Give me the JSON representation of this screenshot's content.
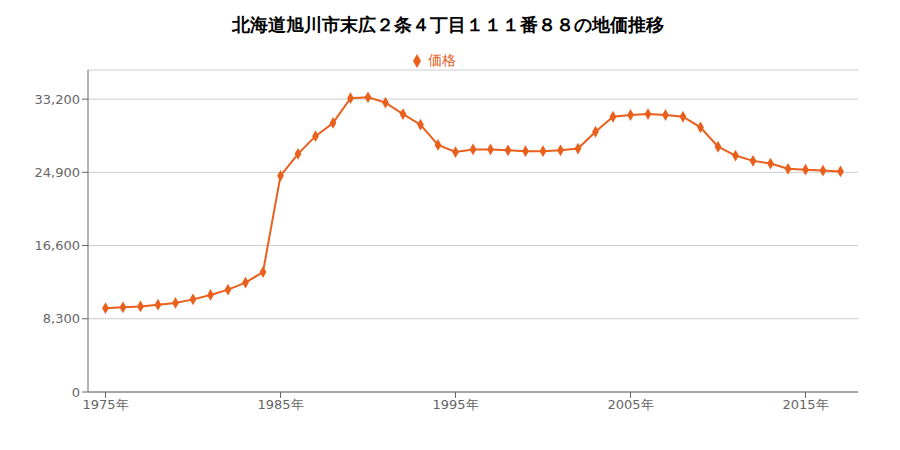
{
  "chart_data": {
    "type": "line",
    "title": "北海道旭川市末広２条４丁目１１１番８８の地価推移",
    "x": [
      1975,
      1976,
      1977,
      1978,
      1979,
      1980,
      1981,
      1982,
      1983,
      1984,
      1985,
      1986,
      1987,
      1988,
      1989,
      1990,
      1991,
      1992,
      1993,
      1994,
      1995,
      1996,
      1997,
      1998,
      1999,
      2000,
      2001,
      2002,
      2003,
      2004,
      2005,
      2006,
      2007,
      2008,
      2009,
      2010,
      2011,
      2012,
      2013,
      2014,
      2015,
      2016,
      2017
    ],
    "series": [
      {
        "name": "価格",
        "color": "#e8601c",
        "marker": "diamond",
        "values": [
          9500,
          9600,
          9700,
          9900,
          10100,
          10500,
          11000,
          11600,
          12400,
          13600,
          24500,
          27000,
          29000,
          30500,
          33300,
          33400,
          32800,
          31500,
          30300,
          28000,
          27200,
          27500,
          27500,
          27400,
          27300,
          27300,
          27400,
          27600,
          29500,
          31200,
          31400,
          31500,
          31400,
          31200,
          30000,
          27800,
          26800,
          26200,
          25900,
          25300,
          25200,
          25100,
          25000
        ]
      }
    ],
    "xlim": [
      1974,
      2018
    ],
    "xticks": [
      {
        "value": 1975,
        "label": "1975年"
      },
      {
        "value": 1985,
        "label": "1985年"
      },
      {
        "value": 1995,
        "label": "1995年"
      },
      {
        "value": 2005,
        "label": "2005年"
      },
      {
        "value": 2015,
        "label": "2015年"
      }
    ],
    "ylim": [
      0,
      36500
    ],
    "yticks": [
      0,
      {
        "value": 8300,
        "label": "8,300"
      },
      {
        "value": 16600,
        "label": "16,600"
      },
      {
        "value": 24900,
        "label": "24,900"
      },
      {
        "value": 33200,
        "label": "33,200"
      }
    ],
    "grid": "y",
    "legend": "top"
  }
}
